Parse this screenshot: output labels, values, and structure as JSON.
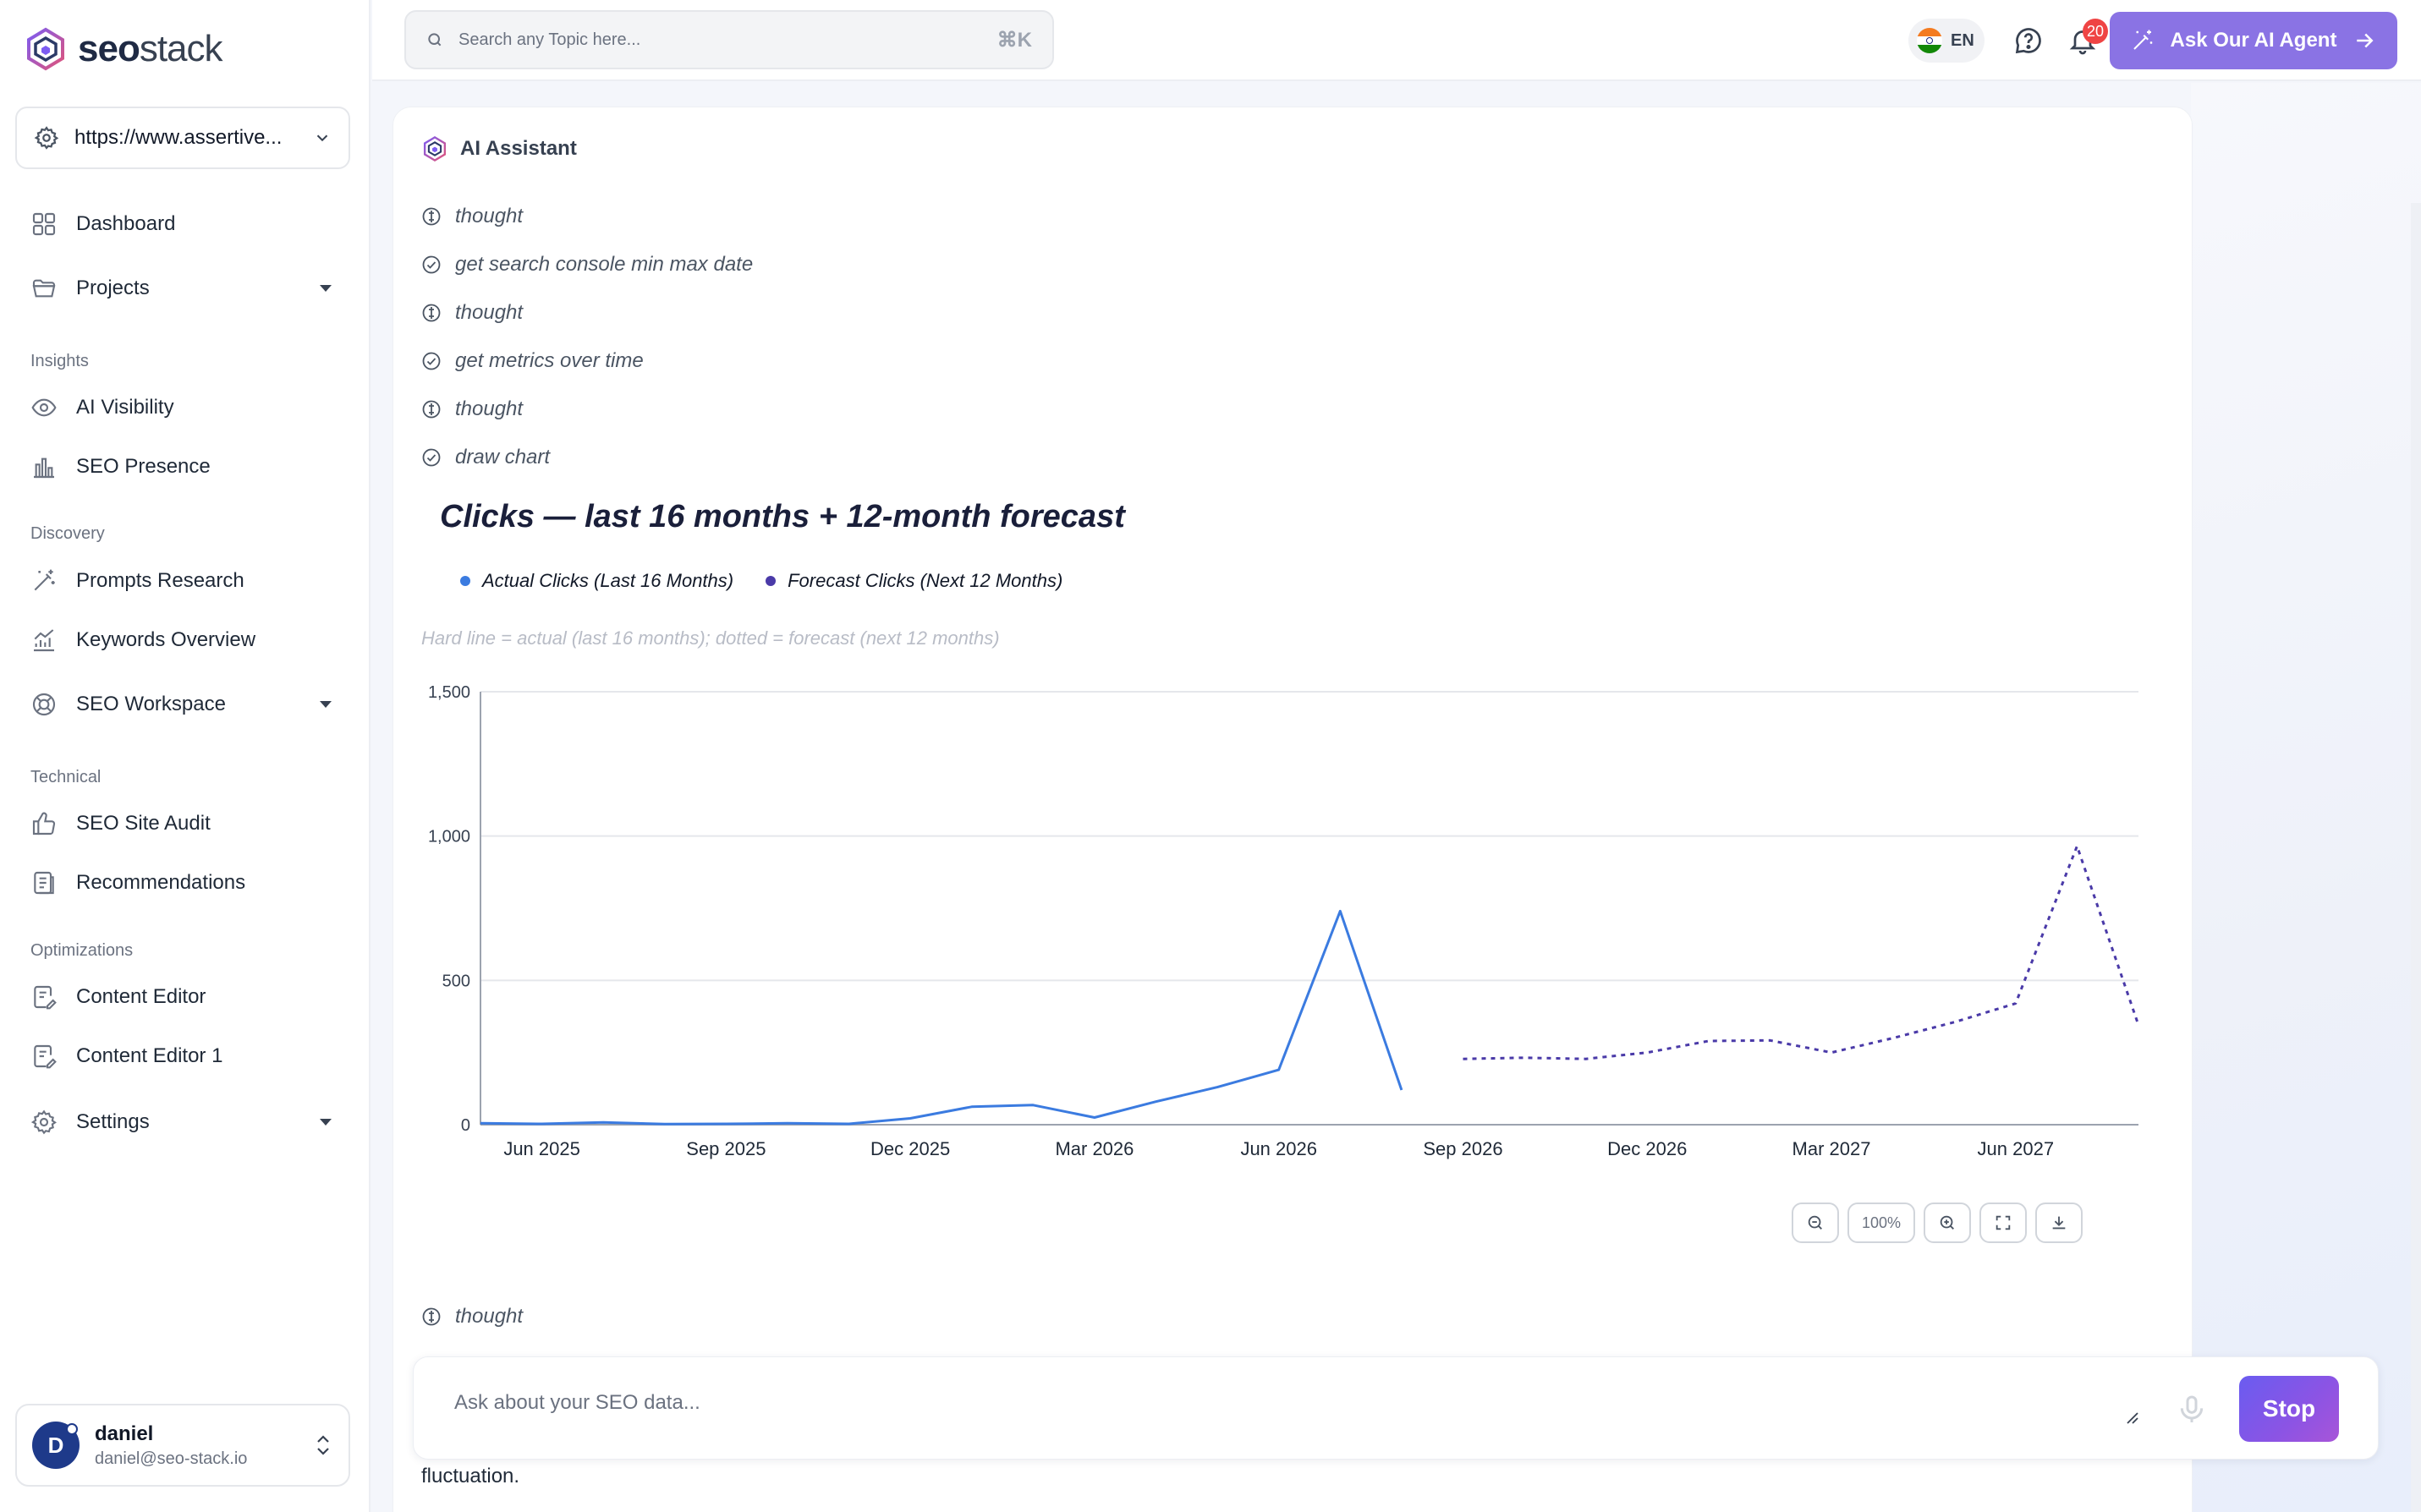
{
  "brand": {
    "name_bold": "seo",
    "name_regular": "stack"
  },
  "site_selector": {
    "value": "https://www.assertive..."
  },
  "sidebar": {
    "items": [
      {
        "label": "Dashboard"
      },
      {
        "label": "Projects"
      },
      {
        "label": "AI Visibility"
      },
      {
        "label": "SEO Presence"
      },
      {
        "label": "Prompts Research"
      },
      {
        "label": "Keywords Overview"
      },
      {
        "label": "SEO Workspace"
      },
      {
        "label": "SEO Site Audit"
      },
      {
        "label": "Recommendations"
      },
      {
        "label": "Content Editor"
      },
      {
        "label": "Content Editor 1"
      },
      {
        "label": "Settings"
      }
    ],
    "sections": {
      "insights": "Insights",
      "discovery": "Discovery",
      "technical": "Technical",
      "optimizations": "Optimizations"
    }
  },
  "user": {
    "initial": "D",
    "name": "daniel",
    "email": "daniel@seo-stack.io"
  },
  "topbar": {
    "search_placeholder": "Search any Topic here...",
    "shortcut": "⌘K",
    "language": "EN",
    "notification_count": "20",
    "agent_button": "Ask Our AI Agent"
  },
  "assistant": {
    "title": "AI Assistant",
    "steps": [
      {
        "label": "thought",
        "icon": "bulb-icon"
      },
      {
        "label": "get search console min max date",
        "icon": "check-circle-icon"
      },
      {
        "label": "thought",
        "icon": "bulb-icon"
      },
      {
        "label": "get metrics over time",
        "icon": "check-circle-icon"
      },
      {
        "label": "thought",
        "icon": "bulb-icon"
      },
      {
        "label": "draw chart",
        "icon": "check-circle-icon"
      }
    ],
    "trailing_step": {
      "label": "thought",
      "icon": "bulb-icon"
    },
    "trailing_text": "fluctuation."
  },
  "chart_controls": {
    "zoom_level": "100%"
  },
  "composer": {
    "placeholder": "Ask about your SEO data...",
    "stop_label": "Stop"
  },
  "colors": {
    "actual": "#3b7be0",
    "forecast": "#4a3aa8",
    "accent": "#8a73e4"
  },
  "chart_data": {
    "type": "line",
    "title": "Clicks — last 16 months + 12-month forecast",
    "subtitle": "Hard line = actual (last 16 months); dotted = forecast (next 12 months)",
    "x_tick_labels": [
      "Jun 2025",
      "Sep 2025",
      "Dec 2025",
      "Mar 2026",
      "Jun 2026",
      "Sep 2026",
      "Dec 2026",
      "Mar 2027",
      "Jun 2027"
    ],
    "y_ticks": [
      0,
      500,
      1000,
      1500
    ],
    "y_tick_labels": [
      "0",
      "500",
      "1,000",
      "1,500"
    ],
    "ylim": [
      0,
      1500
    ],
    "grid": true,
    "legend_position": "top-left",
    "series": [
      {
        "name": "Actual Clicks (Last 16 Months)",
        "style": "solid",
        "x": [
          "2025-05",
          "2025-06",
          "2025-07",
          "2025-08",
          "2025-09",
          "2025-10",
          "2025-11",
          "2025-12",
          "2026-01",
          "2026-02",
          "2026-03",
          "2026-04",
          "2026-05",
          "2026-06",
          "2026-07",
          "2026-08"
        ],
        "values": [
          5,
          3,
          8,
          2,
          3,
          5,
          3,
          22,
          62,
          68,
          25,
          80,
          130,
          190,
          740,
          120
        ]
      },
      {
        "name": "Forecast Clicks (Next 12 Months)",
        "style": "dotted",
        "x": [
          "2026-09",
          "2026-10",
          "2026-11",
          "2026-12",
          "2027-01",
          "2027-02",
          "2027-03",
          "2027-04",
          "2027-05",
          "2027-06",
          "2027-07",
          "2027-08"
        ],
        "values": [
          228,
          232,
          228,
          250,
          290,
          292,
          250,
          300,
          355,
          420,
          965,
          345
        ]
      }
    ]
  }
}
